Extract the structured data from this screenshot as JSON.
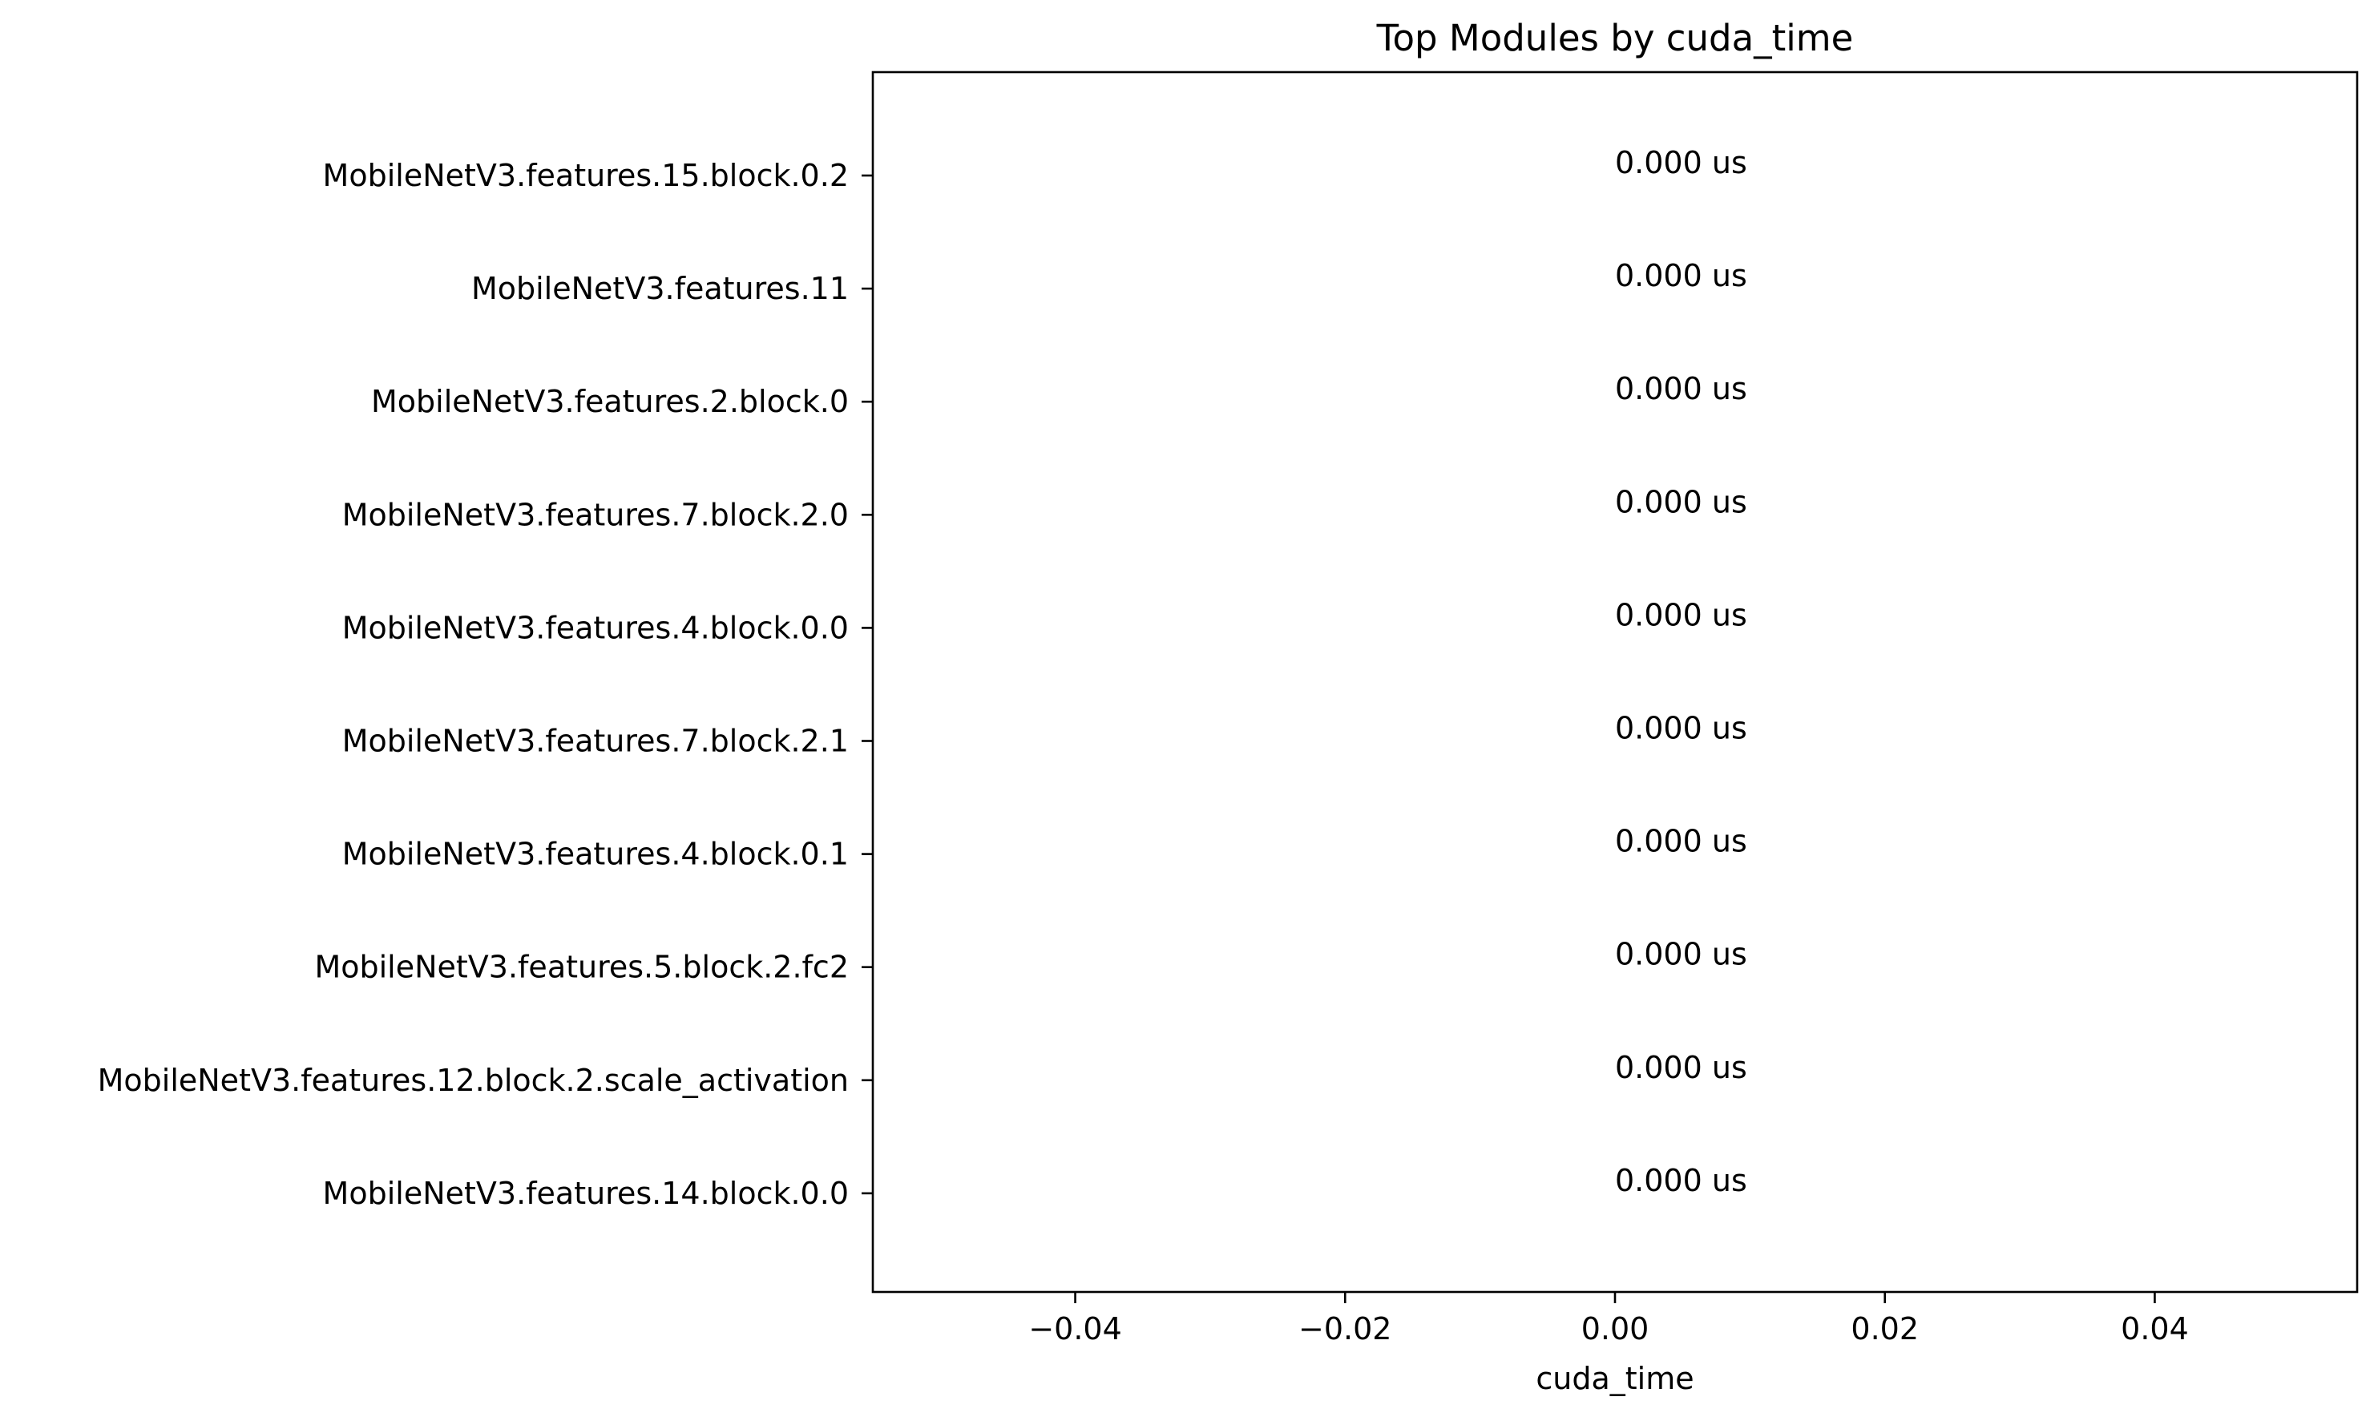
{
  "chart_data": {
    "type": "bar",
    "orientation": "horizontal",
    "title": "Top Modules by cuda_time",
    "xlabel": "cuda_time",
    "ylabel": "",
    "categories": [
      "MobileNetV3.features.15.block.0.2",
      "MobileNetV3.features.11",
      "MobileNetV3.features.2.block.0",
      "MobileNetV3.features.7.block.2.0",
      "MobileNetV3.features.4.block.0.0",
      "MobileNetV3.features.7.block.2.1",
      "MobileNetV3.features.4.block.0.1",
      "MobileNetV3.features.5.block.2.fc2",
      "MobileNetV3.features.12.block.2.scale_activation",
      "MobileNetV3.features.14.block.0.0"
    ],
    "values": [
      0,
      0,
      0,
      0,
      0,
      0,
      0,
      0,
      0,
      0
    ],
    "value_labels": [
      "0.000 us",
      "0.000 us",
      "0.000 us",
      "0.000 us",
      "0.000 us",
      "0.000 us",
      "0.000 us",
      "0.000 us",
      "0.000 us",
      "0.000 us"
    ],
    "xlim": [
      -0.055,
      0.055
    ],
    "xticks": [
      -0.04,
      -0.02,
      0.0,
      0.02,
      0.04
    ],
    "xtick_labels": [
      "−0.04",
      "−0.02",
      "0.00",
      "0.02",
      "0.04"
    ],
    "grid": false,
    "legend": "none",
    "bar_color": "#1f77b4"
  }
}
